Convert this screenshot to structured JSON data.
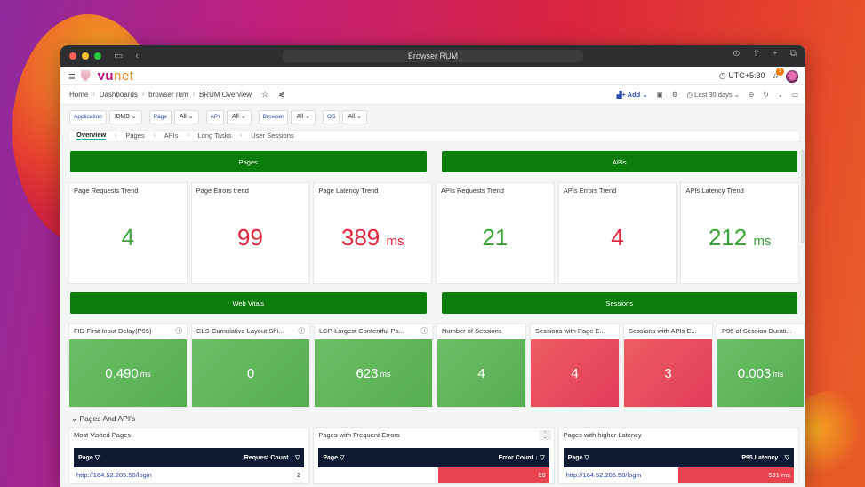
{
  "window": {
    "title": "Browser RUM"
  },
  "appbar": {
    "logo_vu": "vu",
    "logo_net": "net",
    "timezone": "UTC+5:30",
    "notification_count": "5"
  },
  "breadcrumb": {
    "items": [
      "Home",
      "Dashboards",
      "browser rum",
      "BRUM Overview"
    ]
  },
  "toolbar": {
    "add_label": "Add",
    "time_range": "Last 30 days"
  },
  "filters": [
    {
      "label": "Application",
      "value": "IBMB"
    },
    {
      "label": "Page",
      "value": "All"
    },
    {
      "label": "API",
      "value": "All"
    },
    {
      "label": "Browser",
      "value": "All"
    },
    {
      "label": "OS",
      "value": "All"
    }
  ],
  "tabs": [
    "Overview",
    "Pages",
    "APIs",
    "Long Tasks",
    "User Sessions"
  ],
  "banners": {
    "pages": "Pages",
    "apis": "APIs",
    "web_vitals": "Web Vitals",
    "sessions": "Sessions"
  },
  "stats": [
    {
      "title": "Page Requests Trend",
      "value": "4",
      "unit": ""
    },
    {
      "title": "Page Errors trend",
      "value": "99",
      "unit": ""
    },
    {
      "title": "Page Latency Trend",
      "value": "389",
      "unit": "ms"
    },
    {
      "title": "APIs Requests Trend",
      "value": "21",
      "unit": ""
    },
    {
      "title": "APIs Errors Trend",
      "value": "4",
      "unit": ""
    },
    {
      "title": "APIs Latency Trend",
      "value": "212",
      "unit": "ms"
    }
  ],
  "vitals": [
    {
      "title": "FID-First Input Delay(P95)",
      "value": "0.490",
      "unit": "ms"
    },
    {
      "title": "CLS-Cumulative Layout Shi...",
      "value": "0",
      "unit": ""
    },
    {
      "title": "LCP-Largest Contentful Pa...",
      "value": "623",
      "unit": "ms"
    },
    {
      "title": "Number of Sessions",
      "value": "4",
      "unit": ""
    },
    {
      "title": "Sessions with Page E...",
      "value": "4",
      "unit": ""
    },
    {
      "title": "Sessions with APIs E...",
      "value": "3",
      "unit": ""
    },
    {
      "title": "P95 of Session Durati...",
      "value": "0.003",
      "unit": "ms"
    }
  ],
  "section": {
    "title": "Pages And API's"
  },
  "tables": [
    {
      "title": "Most Visited Pages",
      "col1": "Page",
      "col2": "Request Count",
      "rows": [
        {
          "page": "http://164.52.205.50/login",
          "value": "2"
        }
      ]
    },
    {
      "title": "Pages with Frequent Errors",
      "col1": "Page",
      "col2": "Error Count",
      "rows": [
        {
          "page": "",
          "value": "99"
        }
      ]
    },
    {
      "title": "Pages with higher Latency",
      "col1": "Page",
      "col2": "P95 Latency",
      "rows": [
        {
          "page": "http://164.52.205.50/login",
          "value": "531 ms"
        }
      ]
    }
  ],
  "colors": {
    "banner_green": "#0a7d0a",
    "good": "#3fa43a",
    "bad": "#e0263c",
    "table_header": "#0f1a33"
  }
}
